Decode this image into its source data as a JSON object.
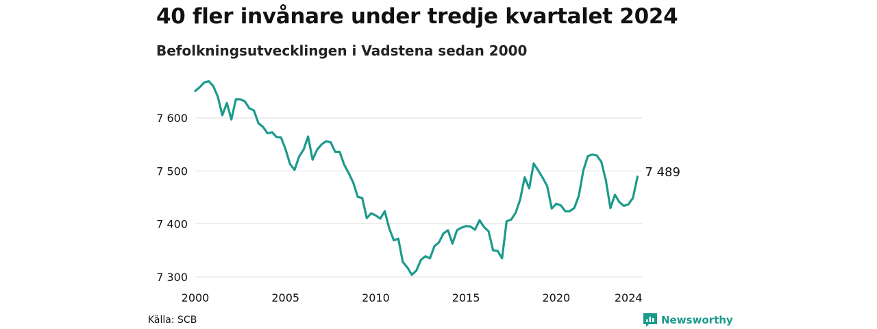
{
  "header": {
    "title": "40 fler invånare under tredje kvartalet 2024",
    "subtitle": "Befolkningsutvecklingen i Vadstena sedan 2000"
  },
  "footer": {
    "source": "Källa: SCB",
    "brand_name": "Newsworthy",
    "brand_icon": "chart-logo-icon"
  },
  "colors": {
    "line": "#1b9a8c",
    "grid": "#dddddd",
    "text": "#111111",
    "brand": "#1b9a8c"
  },
  "chart_data": {
    "type": "line",
    "title": "40 fler invånare under tredje kvartalet 2024",
    "subtitle": "Befolkningsutvecklingen i Vadstena sedan 2000",
    "xlabel": "",
    "ylabel": "",
    "x_range": [
      2000,
      2024.75
    ],
    "ylim": [
      7290,
      7680
    ],
    "yticks": [
      7300,
      7400,
      7500,
      7600
    ],
    "ytick_labels": [
      "7 300",
      "7 400",
      "7 500",
      "7 600"
    ],
    "xticks": [
      2000,
      2005,
      2010,
      2015,
      2020,
      2024
    ],
    "xtick_labels": [
      "2000",
      "2005",
      "2010",
      "2015",
      "2020",
      "2024"
    ],
    "grid": "horizontal",
    "end_label": "7 489",
    "series": [
      {
        "x_start": 2000.0,
        "x_step": 0.25,
        "values": [
          7651,
          7658,
          7667,
          7669,
          7660,
          7640,
          7605,
          7628,
          7597,
          7635,
          7635,
          7631,
          7618,
          7614,
          7590,
          7583,
          7571,
          7573,
          7564,
          7563,
          7541,
          7513,
          7502,
          7527,
          7540,
          7565,
          7521,
          7540,
          7550,
          7556,
          7554,
          7536,
          7536,
          7512,
          7496,
          7478,
          7451,
          7449,
          7411,
          7420,
          7416,
          7410,
          7424,
          7391,
          7369,
          7372,
          7328,
          7318,
          7304,
          7312,
          7332,
          7339,
          7335,
          7358,
          7365,
          7382,
          7388,
          7363,
          7388,
          7393,
          7396,
          7395,
          7389,
          7407,
          7394,
          7386,
          7350,
          7349,
          7335,
          7405,
          7408,
          7421,
          7446,
          7488,
          7467,
          7514,
          7501,
          7487,
          7471,
          7429,
          7438,
          7435,
          7424,
          7424,
          7430,
          7453,
          7501,
          7528,
          7531,
          7529,
          7517,
          7482,
          7430,
          7455,
          7441,
          7434,
          7437,
          7449,
          7489
        ]
      }
    ]
  }
}
